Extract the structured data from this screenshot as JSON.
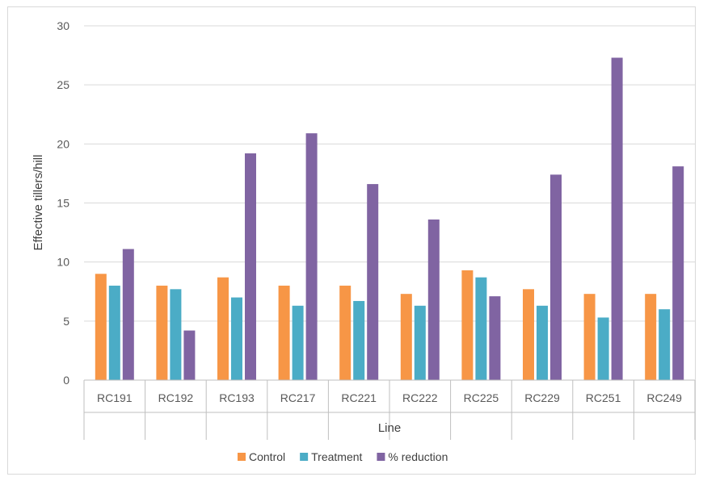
{
  "chart_data": {
    "type": "bar",
    "title": "",
    "xlabel": "Line",
    "ylabel": "Effective tillers/hill",
    "ylim": [
      0,
      30
    ],
    "yticks": [
      0,
      5,
      10,
      15,
      20,
      25,
      30
    ],
    "grid": true,
    "legend_position": "bottom",
    "categories": [
      "RC191",
      "RC192",
      "RC193",
      "RC217",
      "RC221",
      "RC222",
      "RC225",
      "RC229",
      "RC251",
      "RC249"
    ],
    "series": [
      {
        "name": "Control",
        "color": "#f79646",
        "values": [
          9.0,
          8.0,
          8.7,
          8.0,
          8.0,
          7.3,
          9.3,
          7.7,
          7.3,
          7.3
        ]
      },
      {
        "name": "Treatment",
        "color": "#4bacc6",
        "values": [
          8.0,
          7.7,
          7.0,
          6.3,
          6.7,
          6.3,
          8.7,
          6.3,
          5.3,
          6.0
        ]
      },
      {
        "name": "% reduction",
        "color": "#8064a2",
        "values": [
          11.1,
          4.2,
          19.2,
          20.9,
          16.6,
          13.6,
          7.1,
          17.4,
          27.3,
          18.1
        ]
      }
    ]
  }
}
